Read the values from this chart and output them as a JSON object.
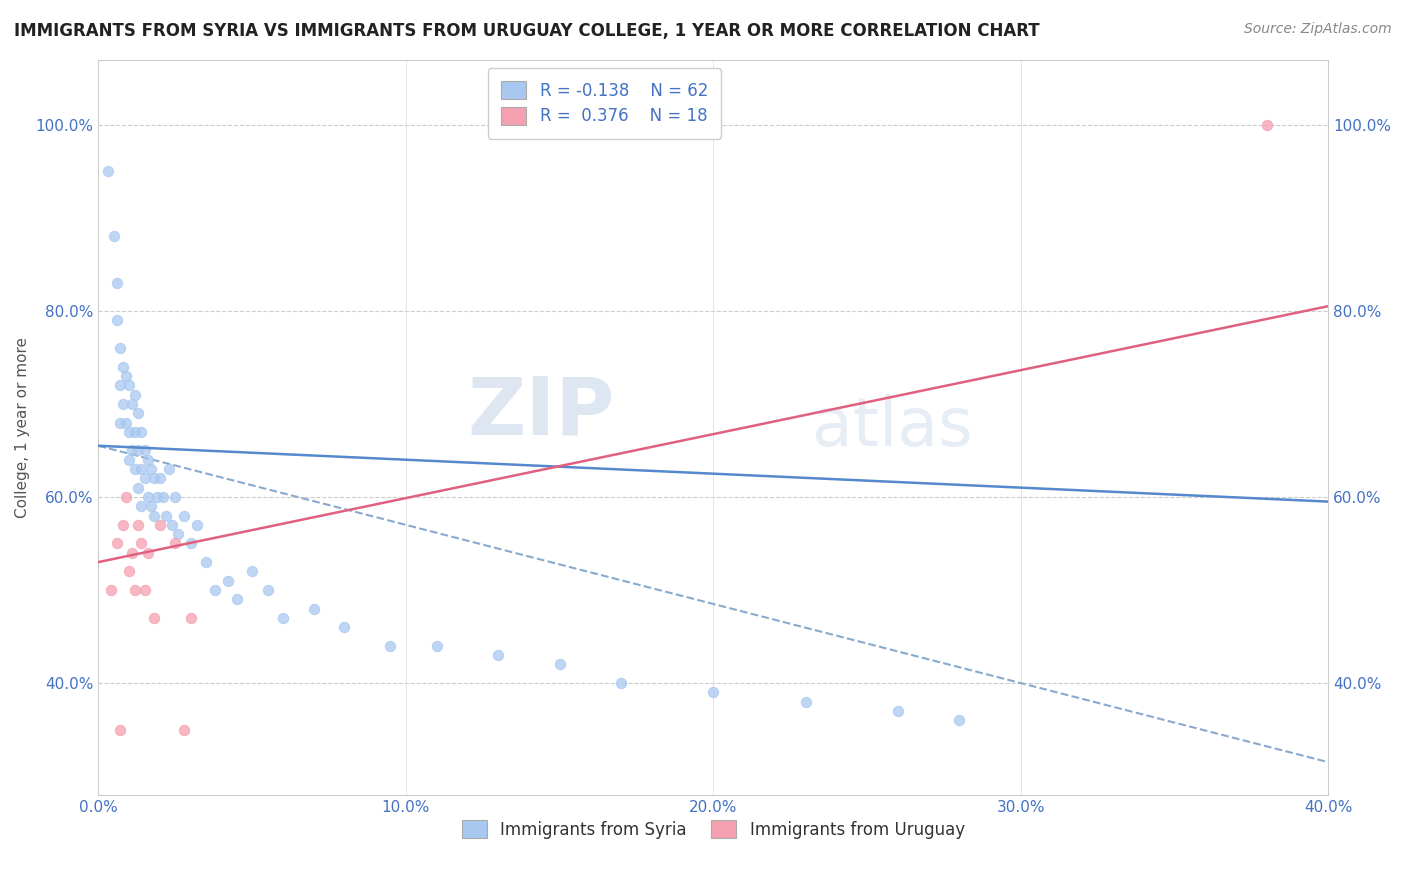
{
  "title": "IMMIGRANTS FROM SYRIA VS IMMIGRANTS FROM URUGUAY COLLEGE, 1 YEAR OR MORE CORRELATION CHART",
  "source": "Source: ZipAtlas.com",
  "xlabel_ticks": [
    "0.0%",
    "10.0%",
    "20.0%",
    "30.0%",
    "40.0%"
  ],
  "xlabel_vals": [
    0.0,
    0.1,
    0.2,
    0.3,
    0.4
  ],
  "ylabel": "College, 1 year or more",
  "ylabel_ticks": [
    "40.0%",
    "60.0%",
    "80.0%",
    "100.0%"
  ],
  "ylabel_vals": [
    0.4,
    0.6,
    0.8,
    1.0
  ],
  "xlim": [
    0.0,
    0.4
  ],
  "ylim": [
    0.28,
    1.07
  ],
  "legend_r_syria": "-0.138",
  "legend_n_syria": "62",
  "legend_r_uruguay": "0.376",
  "legend_n_uruguay": "18",
  "syria_color": "#a8c8f0",
  "uruguay_color": "#f5a0b0",
  "syria_line_color": "#5588cc",
  "uruguay_line_color": "#e06080",
  "dashed_line_color": "#88aacc",
  "watermark_zip": "ZIP",
  "watermark_atlas": "atlas",
  "syria_x": [
    0.003,
    0.005,
    0.006,
    0.006,
    0.007,
    0.007,
    0.007,
    0.008,
    0.008,
    0.009,
    0.009,
    0.01,
    0.01,
    0.01,
    0.011,
    0.011,
    0.012,
    0.012,
    0.012,
    0.013,
    0.013,
    0.013,
    0.014,
    0.014,
    0.014,
    0.015,
    0.015,
    0.016,
    0.016,
    0.017,
    0.017,
    0.018,
    0.018,
    0.019,
    0.02,
    0.021,
    0.022,
    0.023,
    0.024,
    0.025,
    0.026,
    0.028,
    0.03,
    0.032,
    0.035,
    0.038,
    0.042,
    0.045,
    0.05,
    0.055,
    0.06,
    0.07,
    0.08,
    0.095,
    0.11,
    0.13,
    0.15,
    0.17,
    0.2,
    0.23,
    0.26,
    0.28
  ],
  "syria_y": [
    0.95,
    0.88,
    0.83,
    0.79,
    0.76,
    0.72,
    0.68,
    0.74,
    0.7,
    0.73,
    0.68,
    0.72,
    0.67,
    0.64,
    0.7,
    0.65,
    0.71,
    0.67,
    0.63,
    0.69,
    0.65,
    0.61,
    0.67,
    0.63,
    0.59,
    0.65,
    0.62,
    0.64,
    0.6,
    0.63,
    0.59,
    0.62,
    0.58,
    0.6,
    0.62,
    0.6,
    0.58,
    0.63,
    0.57,
    0.6,
    0.56,
    0.58,
    0.55,
    0.57,
    0.53,
    0.5,
    0.51,
    0.49,
    0.52,
    0.5,
    0.47,
    0.48,
    0.46,
    0.44,
    0.44,
    0.43,
    0.42,
    0.4,
    0.39,
    0.38,
    0.37,
    0.36
  ],
  "uruguay_x": [
    0.004,
    0.006,
    0.007,
    0.008,
    0.009,
    0.01,
    0.011,
    0.012,
    0.013,
    0.014,
    0.015,
    0.016,
    0.018,
    0.02,
    0.025,
    0.028,
    0.03,
    0.38
  ],
  "uruguay_y": [
    0.5,
    0.55,
    0.35,
    0.57,
    0.6,
    0.52,
    0.54,
    0.5,
    0.57,
    0.55,
    0.5,
    0.54,
    0.47,
    0.57,
    0.55,
    0.35,
    0.47,
    1.0
  ],
  "syria_trendline": [
    0.655,
    0.595
  ],
  "uruguay_trendline": [
    0.53,
    0.805
  ],
  "syria_dash_trendline": [
    0.655,
    0.315
  ]
}
